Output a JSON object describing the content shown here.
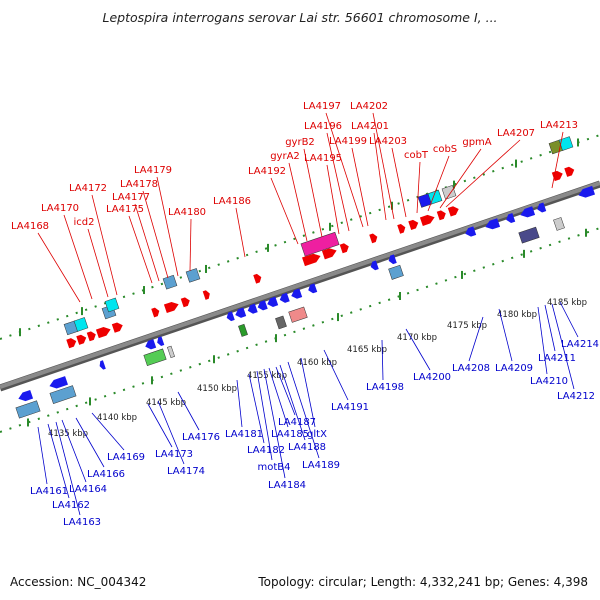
{
  "title": "Leptospira interrogans serovar Lai str. 56601 chromosome I, ...",
  "footer": {
    "accession": "Accession: NC_004342",
    "summary": "Topology: circular; Length: 4,332,241 bp; Genes: 4,398"
  },
  "colors": {
    "forward_label": "#dd0000",
    "reverse_label": "#0000cc",
    "forward_gene": "#ee0000",
    "reverse_gene": "#1a1aee",
    "backbone": "#8a8a8a",
    "tick": "#2a8a2a"
  },
  "scale": {
    "unit": "kbp",
    "ticks": [
      {
        "kbp": 4135,
        "label": "4135 kbp"
      },
      {
        "kbp": 4140,
        "label": "4140 kbp"
      },
      {
        "kbp": 4145,
        "label": "4145 kbp"
      },
      {
        "kbp": 4150,
        "label": "4150 kbp"
      },
      {
        "kbp": 4155,
        "label": "4155 kbp"
      },
      {
        "kbp": 4160,
        "label": "4160 kbp"
      },
      {
        "kbp": 4165,
        "label": "4165 kbp"
      },
      {
        "kbp": 4170,
        "label": "4170 kbp"
      },
      {
        "kbp": 4175,
        "label": "4175 kbp"
      },
      {
        "kbp": 4180,
        "label": "4180 kbp"
      },
      {
        "kbp": 4185,
        "label": "4185 kbp"
      }
    ]
  },
  "forward_labels": [
    "LA4168",
    "LA4170",
    "icd2",
    "LA4172",
    "LA4175",
    "LA4177",
    "LA4178",
    "LA4179",
    "LA4180",
    "LA4186",
    "LA4192",
    "gyrA2",
    "gyrB2",
    "LA4195",
    "LA4196",
    "LA4197",
    "LA4199",
    "LA4201",
    "LA4202",
    "LA4203",
    "cobT",
    "cobS",
    "gpmA",
    "LA4207",
    "LA4213"
  ],
  "reverse_labels": [
    "LA4161",
    "LA4162",
    "LA4163",
    "LA4164",
    "LA4166",
    "LA4169",
    "LA4173",
    "LA4174",
    "LA4176",
    "LA4181",
    "LA4182",
    "motB4",
    "LA4184",
    "LA4185",
    "LA4187",
    "LA4188",
    "LA4189",
    "gltX",
    "LA4191",
    "LA4198",
    "LA4200",
    "LA4208",
    "LA4209",
    "LA4210",
    "LA4211",
    "LA4212",
    "LA4214"
  ]
}
